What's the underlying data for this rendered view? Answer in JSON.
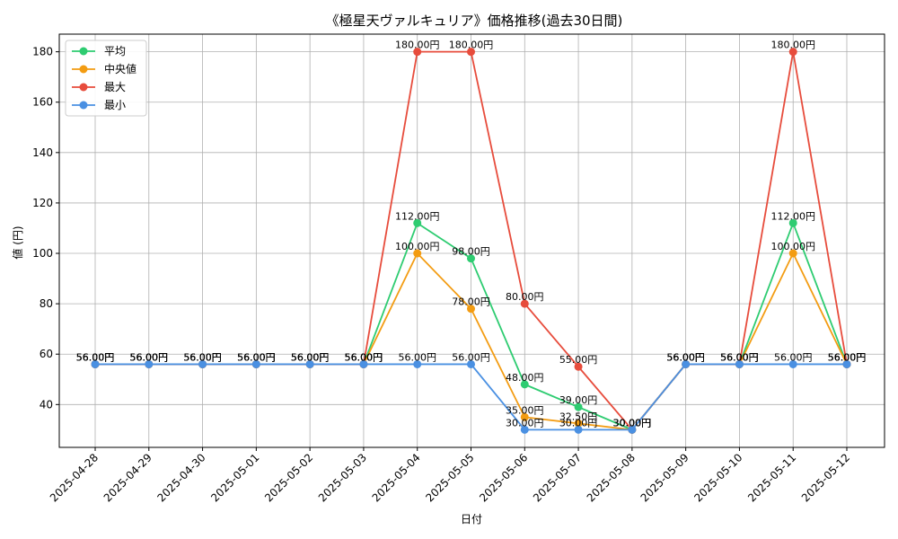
{
  "chart_data": {
    "type": "line",
    "title": "《極星天ヴァルキュリア》価格推移(過去30日間)",
    "xlabel": "日付",
    "ylabel": "値 (円)",
    "ylim": [
      23,
      187
    ],
    "yticks": [
      40,
      60,
      80,
      100,
      120,
      140,
      160,
      180
    ],
    "grid": true,
    "legend_position": "top-left",
    "value_suffix": "円",
    "categories": [
      "2025-04-28",
      "2025-04-29",
      "2025-04-30",
      "2025-05-01",
      "2025-05-02",
      "2025-05-03",
      "2025-05-04",
      "2025-05-05",
      "2025-05-06",
      "2025-05-07",
      "2025-05-08",
      "2025-05-09",
      "2025-05-10",
      "2025-05-11",
      "2025-05-12"
    ],
    "series": [
      {
        "name": "平均",
        "color": "#2ecc71",
        "values": [
          56,
          56,
          56,
          56,
          56,
          56,
          112,
          98,
          48,
          39,
          30,
          56,
          56,
          112,
          56
        ]
      },
      {
        "name": "中央値",
        "color": "#f39c12",
        "values": [
          56,
          56,
          56,
          56,
          56,
          56,
          100,
          78,
          35,
          32.5,
          30,
          56,
          56,
          100,
          56
        ]
      },
      {
        "name": "最大",
        "color": "#e74c3c",
        "values": [
          56,
          56,
          56,
          56,
          56,
          56,
          180,
          180,
          80,
          55,
          30,
          56,
          56,
          180,
          56
        ]
      },
      {
        "name": "最小",
        "color": "#4a90e2",
        "values": [
          56,
          56,
          56,
          56,
          56,
          56,
          56,
          56,
          30,
          30,
          30,
          56,
          56,
          56,
          56
        ]
      }
    ]
  }
}
